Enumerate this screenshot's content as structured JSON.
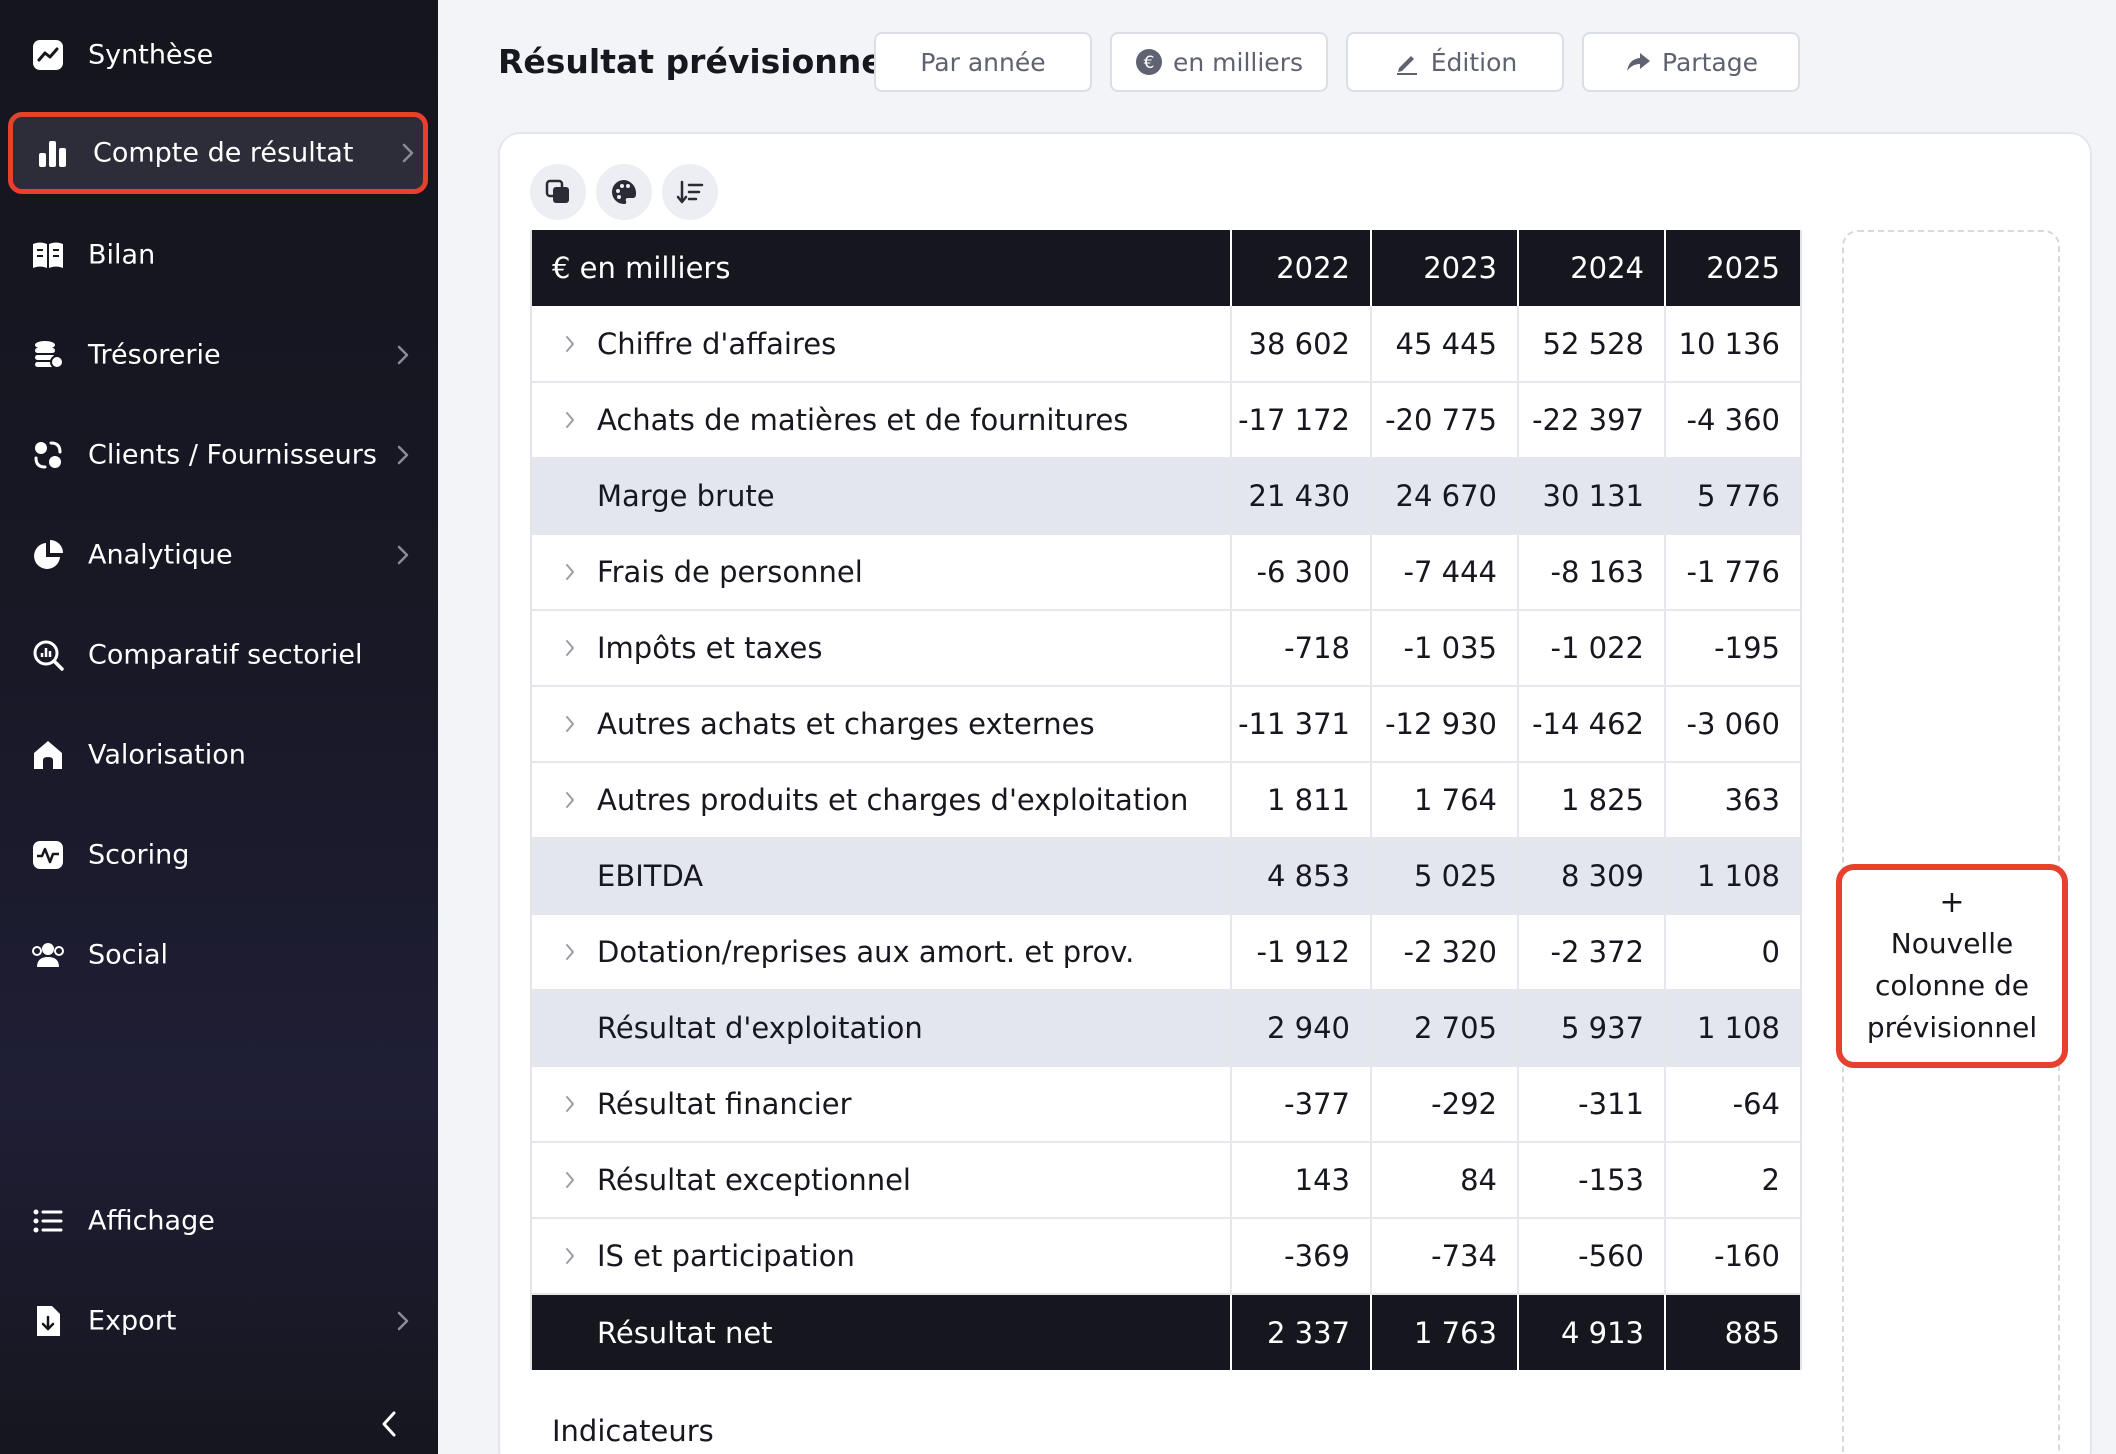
{
  "sidebar": {
    "items": [
      {
        "label": "Synthèse",
        "icon": "trend-chart-icon",
        "has_chevron": false,
        "active": false
      },
      {
        "label": "Compte de résultat",
        "icon": "bar-chart-icon",
        "has_chevron": true,
        "active": true
      },
      {
        "label": "Bilan",
        "icon": "book-icon",
        "has_chevron": false,
        "active": false
      },
      {
        "label": "Trésorerie",
        "icon": "coins-icon",
        "has_chevron": true,
        "active": false
      },
      {
        "label": "Clients / Fournisseurs",
        "icon": "exchange-icon",
        "has_chevron": true,
        "active": false
      },
      {
        "label": "Analytique",
        "icon": "pie-chart-icon",
        "has_chevron": true,
        "active": false
      },
      {
        "label": "Comparatif sectoriel",
        "icon": "magnifier-chart-icon",
        "has_chevron": false,
        "active": false
      },
      {
        "label": "Valorisation",
        "icon": "house-icon",
        "has_chevron": false,
        "active": false
      },
      {
        "label": "Scoring",
        "icon": "pulse-icon",
        "has_chevron": false,
        "active": false
      },
      {
        "label": "Social",
        "icon": "users-icon",
        "has_chevron": false,
        "active": false
      },
      {
        "label": "Affichage",
        "icon": "list-icon",
        "has_chevron": false,
        "active": false
      },
      {
        "label": "Export",
        "icon": "download-file-icon",
        "has_chevron": true,
        "active": false
      }
    ],
    "collapse_icon": "chevron-left-icon"
  },
  "header": {
    "title": "Résultat prévisionnel",
    "buttons": {
      "period": "Par année",
      "unit": "en milliers",
      "edit": "Édition",
      "share": "Partage"
    }
  },
  "toolbar": {
    "icons": [
      "copy-icon",
      "palette-icon",
      "sort-icon"
    ]
  },
  "table": {
    "unit_label": "€ en milliers",
    "years": [
      "2022",
      "2023",
      "2024",
      "2025"
    ],
    "rows": [
      {
        "label": "Chiffre d'affaires",
        "values": [
          "38 602",
          "45 445",
          "52 528",
          "10 136"
        ],
        "type": "expandable"
      },
      {
        "label": "Achats de matières et de fournitures",
        "values": [
          "-17 172",
          "-20 775",
          "-22 397",
          "-4 360"
        ],
        "type": "expandable"
      },
      {
        "label": "Marge brute",
        "values": [
          "21 430",
          "24 670",
          "30 131",
          "5 776"
        ],
        "type": "subtotal"
      },
      {
        "label": "Frais de personnel",
        "values": [
          "-6 300",
          "-7 444",
          "-8 163",
          "-1 776"
        ],
        "type": "expandable"
      },
      {
        "label": "Impôts et taxes",
        "values": [
          "-718",
          "-1 035",
          "-1 022",
          "-195"
        ],
        "type": "expandable"
      },
      {
        "label": "Autres achats et charges externes",
        "values": [
          "-11 371",
          "-12 930",
          "-14 462",
          "-3 060"
        ],
        "type": "expandable"
      },
      {
        "label": "Autres produits et charges d'exploitation",
        "values": [
          "1 811",
          "1 764",
          "1 825",
          "363"
        ],
        "type": "expandable"
      },
      {
        "label": "EBITDA",
        "values": [
          "4 853",
          "5 025",
          "8 309",
          "1 108"
        ],
        "type": "subtotal"
      },
      {
        "label": "Dotation/reprises aux amort. et prov.",
        "values": [
          "-1 912",
          "-2 320",
          "-2 372",
          "0"
        ],
        "type": "expandable"
      },
      {
        "label": "Résultat d'exploitation",
        "values": [
          "2 940",
          "2 705",
          "5 937",
          "1 108"
        ],
        "type": "subtotal"
      },
      {
        "label": "Résultat financier",
        "values": [
          "-377",
          "-292",
          "-311",
          "-64"
        ],
        "type": "expandable"
      },
      {
        "label": "Résultat exceptionnel",
        "values": [
          "143",
          "84",
          "-153",
          "2"
        ],
        "type": "expandable"
      },
      {
        "label": "IS et participation",
        "values": [
          "-369",
          "-734",
          "-560",
          "-160"
        ],
        "type": "expandable"
      },
      {
        "label": "Résultat net",
        "values": [
          "2 337",
          "1 763",
          "4 913",
          "885"
        ],
        "type": "total"
      }
    ]
  },
  "indicators_label": "Indicateurs",
  "new_column": {
    "plus": "+",
    "label": "Nouvelle colonne de prévisionnel"
  },
  "colors": {
    "accent_highlight": "#e8402e",
    "sidebar_bg": "#16161f",
    "table_header_bg": "#15161e",
    "subtotal_bg": "#e4e6ee"
  }
}
